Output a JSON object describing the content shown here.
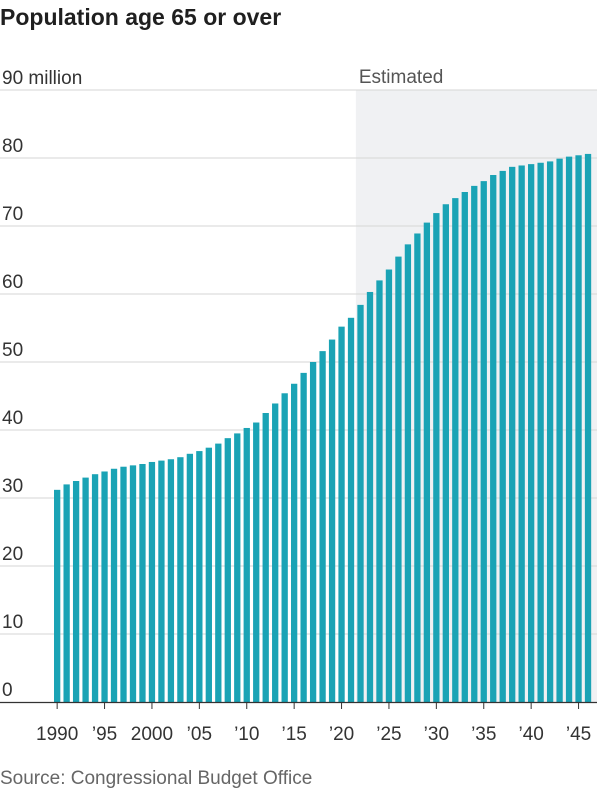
{
  "chart_data": {
    "type": "bar",
    "title": "Population age 65 or over",
    "source": "Source: Congressional Budget Office",
    "y_unit_label": "90 million",
    "ylim": [
      0,
      90
    ],
    "y_ticks": [
      0,
      10,
      20,
      30,
      40,
      50,
      60,
      70,
      80,
      90
    ],
    "y_tick_labels": [
      "0",
      "10",
      "20",
      "30",
      "40",
      "50",
      "60",
      "70",
      "80",
      "90 million"
    ],
    "x_tick_labels": [
      {
        "year": 1990,
        "label": "1990"
      },
      {
        "year": 1995,
        "label": "’95"
      },
      {
        "year": 2000,
        "label": "2000"
      },
      {
        "year": 2005,
        "label": "’05"
      },
      {
        "year": 2010,
        "label": "’10"
      },
      {
        "year": 2015,
        "label": "’15"
      },
      {
        "year": 2020,
        "label": "’20"
      },
      {
        "year": 2025,
        "label": "’25"
      },
      {
        "year": 2030,
        "label": "’30"
      },
      {
        "year": 2035,
        "label": "’35"
      },
      {
        "year": 2040,
        "label": "’40"
      },
      {
        "year": 2045,
        "label": "’45"
      }
    ],
    "estimated_label": "Estimated",
    "estimated_from_year": 2022,
    "bar_color": "#1aa3b5",
    "shade_color": "#f0f1f3",
    "grid": true,
    "years": [
      1990,
      1991,
      1992,
      1993,
      1994,
      1995,
      1996,
      1997,
      1998,
      1999,
      2000,
      2001,
      2002,
      2003,
      2004,
      2005,
      2006,
      2007,
      2008,
      2009,
      2010,
      2011,
      2012,
      2013,
      2014,
      2015,
      2016,
      2017,
      2018,
      2019,
      2020,
      2021,
      2022,
      2023,
      2024,
      2025,
      2026,
      2027,
      2028,
      2029,
      2030,
      2031,
      2032,
      2033,
      2034,
      2035,
      2036,
      2037,
      2038,
      2039,
      2040,
      2041,
      2042,
      2043,
      2044,
      2045,
      2046
    ],
    "values": [
      31.2,
      32.0,
      32.5,
      33.0,
      33.5,
      33.9,
      34.3,
      34.6,
      34.8,
      35.0,
      35.3,
      35.5,
      35.7,
      36.0,
      36.5,
      36.9,
      37.4,
      38.0,
      38.8,
      39.5,
      40.3,
      41.1,
      42.5,
      43.9,
      45.4,
      46.8,
      48.4,
      50.0,
      51.6,
      53.3,
      55.2,
      56.5,
      58.4,
      60.3,
      62.0,
      63.6,
      65.5,
      67.3,
      68.9,
      70.5,
      71.9,
      73.2,
      74.1,
      75.0,
      75.9,
      76.6,
      77.5,
      78.1,
      78.7,
      78.9,
      79.1,
      79.3,
      79.5,
      79.9,
      80.2,
      80.4,
      80.6
    ]
  }
}
